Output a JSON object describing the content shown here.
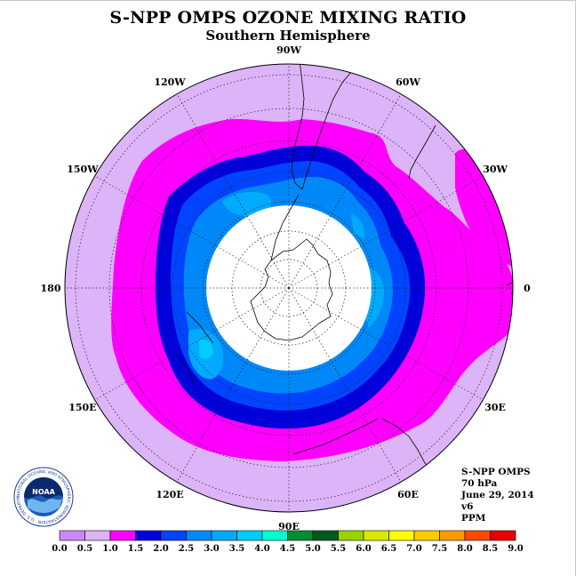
{
  "title": "S-NPP OMPS OZONE MIXING RATIO",
  "subtitle": "Southern Hemisphere",
  "longitude_labels": [
    {
      "text": "90W",
      "lon": -90
    },
    {
      "text": "60W",
      "lon": -60
    },
    {
      "text": "30W",
      "lon": -30
    },
    {
      "text": "0",
      "lon": 0
    },
    {
      "text": "30E",
      "lon": 30
    },
    {
      "text": "60E",
      "lon": 60
    },
    {
      "text": "90E",
      "lon": 90
    },
    {
      "text": "120E",
      "lon": 120
    },
    {
      "text": "150E",
      "lon": 150
    },
    {
      "text": "180",
      "lon": 180
    },
    {
      "text": "150W",
      "lon": -150
    },
    {
      "text": "120W",
      "lon": -120
    }
  ],
  "info": {
    "instrument": "S-NPP OMPS",
    "level": "70 hPa",
    "date": "June 29, 2014",
    "version": "v6",
    "units": "PPM"
  },
  "logo": {
    "text": "NOAA",
    "ring_text": "NATIONAL OCEANIC AND ATMOSPHERIC ADMINISTRATION · U.S. DEPARTMENT OF COMMERCE"
  },
  "colorbar": {
    "labels": [
      "0.0",
      "0.5",
      "1.0",
      "1.5",
      "2.0",
      "2.5",
      "3.0",
      "3.5",
      "4.0",
      "4.5",
      "5.0",
      "5.5",
      "6.0",
      "6.5",
      "7.0",
      "7.5",
      "8.0",
      "8.5",
      "9.0"
    ],
    "colors": [
      "#cc88f8",
      "#dcb4f8",
      "#ff00ff",
      "#0000d8",
      "#0044ff",
      "#0088f8",
      "#00aaff",
      "#00ccff",
      "#00ffd0",
      "#008c30",
      "#005a1e",
      "#9ad200",
      "#d8e800",
      "#ffff00",
      "#ffcc00",
      "#ff9a00",
      "#ff4a00",
      "#e60000",
      "#8c5a3c"
    ]
  },
  "colors": {
    "background": "#ffffff",
    "outer_band": "#dcb4f8",
    "magenta_band": "#ff00ff",
    "navy_band": "#0000d8",
    "blue_band": "#0044ff",
    "mid_blue": "#0088f8",
    "light_blue": "#00aaff",
    "polar_night": "#ffffff"
  },
  "chart_data": {
    "type": "polar-stereographic contour map",
    "title": "S-NPP OMPS OZONE MIXING RATIO",
    "subtitle": "Southern Hemisphere",
    "pressure_level": "70 hPa",
    "date": "June 29, 2014",
    "units": "PPM",
    "contour_levels": [
      0.0,
      0.5,
      1.0,
      1.5,
      2.0,
      2.5,
      3.0,
      3.5,
      4.0,
      4.5,
      5.0,
      5.5,
      6.0,
      6.5,
      7.0,
      7.5,
      8.0,
      8.5,
      9.0
    ],
    "regions": [
      {
        "range": [
          0.5,
          1.0
        ],
        "where": "outer ring, mid-latitudes"
      },
      {
        "range": [
          1.0,
          1.5
        ],
        "where": "band around polar vortex"
      },
      {
        "range": [
          1.5,
          2.0
        ],
        "where": "vortex edge ring"
      },
      {
        "range": [
          2.0,
          3.0
        ],
        "where": "inside polar vortex"
      },
      {
        "range": [
          3.0,
          3.5
        ],
        "where": "isolated patches inside vortex"
      },
      {
        "range": null,
        "where": "no data (polar night) over Antarctica"
      }
    ],
    "grid": true
  }
}
